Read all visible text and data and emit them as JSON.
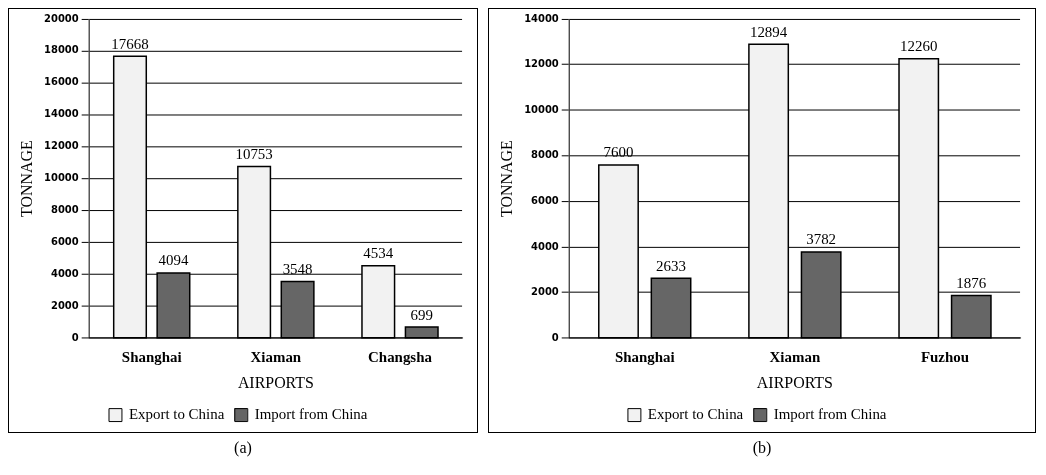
{
  "chart_data": [
    {
      "type": "bar",
      "categories": [
        "Shanghai",
        "Xiaman",
        "Changsha"
      ],
      "xlabel": "AIRPORTS",
      "ylabel": "TONNAGE",
      "ylim": [
        0,
        20000
      ],
      "yticks": [
        0,
        2000,
        4000,
        6000,
        8000,
        10000,
        12000,
        14000,
        16000,
        18000,
        20000
      ],
      "grid": "y",
      "legend": "bottom",
      "data_labels": true,
      "annotations": [
        "(a)"
      ],
      "series": [
        {
          "name": "Export to China",
          "color": "#f2f2f2",
          "values": [
            17668,
            10753,
            4534
          ]
        },
        {
          "name": "Import from China",
          "color": "#666666",
          "values": [
            4094,
            3548,
            699
          ]
        }
      ]
    },
    {
      "type": "bar",
      "categories": [
        "Shanghai",
        "Xiaman",
        "Fuzhou"
      ],
      "xlabel": "AIRPORTS",
      "ylabel": "TONNAGE",
      "ylim": [
        0,
        14000
      ],
      "yticks": [
        0,
        2000,
        4000,
        6000,
        8000,
        10000,
        12000,
        14000
      ],
      "grid": "y",
      "legend": "bottom",
      "data_labels": true,
      "annotations": [
        "(b)"
      ],
      "series": [
        {
          "name": "Export to China",
          "color": "#f2f2f2",
          "values": [
            7600,
            12894,
            12260
          ]
        },
        {
          "name": "Import from China",
          "color": "#666666",
          "values": [
            2633,
            3782,
            1876
          ]
        }
      ]
    }
  ]
}
